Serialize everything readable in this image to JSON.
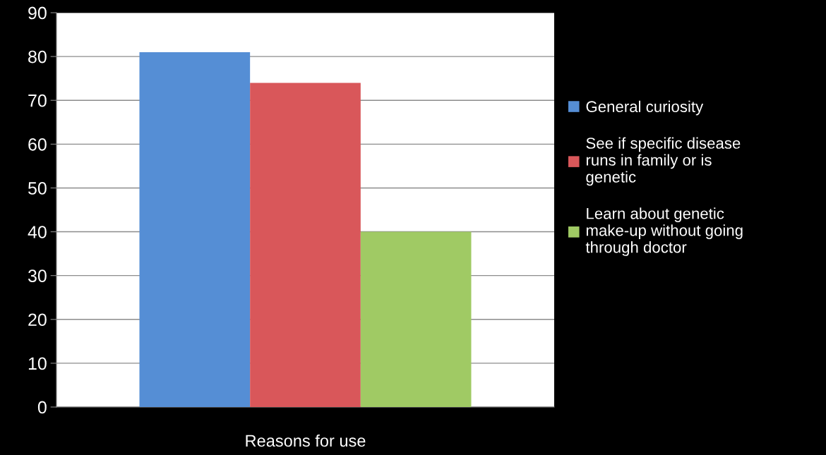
{
  "chart_data": {
    "type": "bar",
    "categories": [
      "Reasons for use"
    ],
    "series": [
      {
        "name": "General curiosity",
        "color": "#558ed5",
        "values": [
          81
        ]
      },
      {
        "name": "See if specific disease runs in family or is genetic",
        "color": "#d9575a",
        "values": [
          74
        ]
      },
      {
        "name": "Learn about genetic make-up without going through doctor",
        "color": "#a0ca64",
        "values": [
          40
        ]
      }
    ],
    "ylim": [
      0,
      90
    ],
    "yticks": [
      0,
      10,
      20,
      30,
      40,
      50,
      60,
      70,
      80,
      90
    ],
    "grid": "y",
    "legend": "right"
  }
}
